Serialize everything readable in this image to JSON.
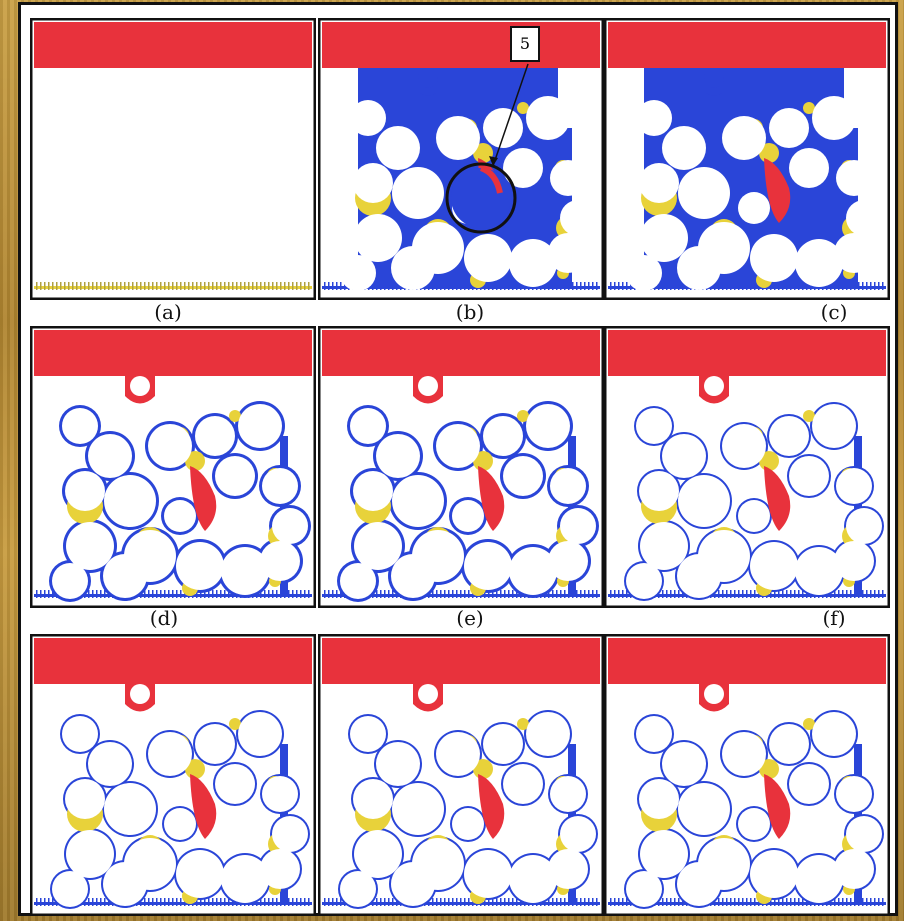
{
  "figure": {
    "colors": {
      "frame": "#111111",
      "red": "#e8323c",
      "blue": "#2a45d8",
      "yellow": "#e8d23a",
      "white": "#ffffff"
    },
    "callout_label": "5",
    "panels": [
      {
        "id": "a",
        "label": "(a)"
      },
      {
        "id": "b",
        "label": "(b)"
      },
      {
        "id": "c",
        "label": "(c)"
      },
      {
        "id": "d",
        "label": "(d)"
      },
      {
        "id": "e",
        "label": "(e)"
      },
      {
        "id": "f",
        "label": "(f)"
      },
      {
        "id": "g",
        "label": ""
      },
      {
        "id": "h",
        "label": ""
      },
      {
        "id": "i",
        "label": ""
      }
    ]
  }
}
